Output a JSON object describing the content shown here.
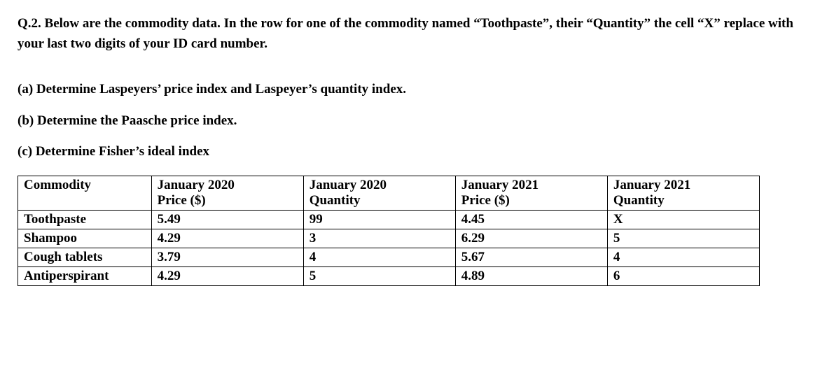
{
  "question": {
    "intro": "Q.2. Below are the commodity data. In the row for one of the commodity named “Toothpaste”, their “Quantity” the cell “X” replace with your last two digits of your ID card number.",
    "part_a": "(a) Determine Laspeyers’ price index and Laspeyer’s quantity index.",
    "part_b": "(b) Determine the Paasche price index.",
    "part_c": "(c) Determine Fisher’s ideal index"
  },
  "table": {
    "headers": {
      "commodity": "Commodity",
      "jan2020_price": "January 2020 Price ($)",
      "jan2020_qty": "January 2020 Quantity",
      "jan2021_price": "January 2021 Price ($)",
      "jan2021_qty": "January 2021 Quantity"
    },
    "header_lines": {
      "jan2020": "January 2020",
      "jan2021": "January 2021",
      "price": "Price ($)",
      "quantity": "Quantity"
    },
    "rows": [
      {
        "commodity": "Toothpaste",
        "p2020": "5.49",
        "q2020": "99",
        "p2021": "4.45",
        "q2021": "X"
      },
      {
        "commodity": "Shampoo",
        "p2020": "4.29",
        "q2020": "3",
        "p2021": "6.29",
        "q2021": "5"
      },
      {
        "commodity": "Cough tablets",
        "p2020": "3.79",
        "q2020": "4",
        "p2021": "5.67",
        "q2021": "4"
      },
      {
        "commodity": "Antiperspirant",
        "p2020": "4.29",
        "q2020": "5",
        "p2021": "4.89",
        "q2021": "6"
      }
    ]
  },
  "styling": {
    "font_family": "Times New Roman",
    "font_size_pt": 19,
    "font_weight": "bold",
    "background_color": "#ffffff",
    "text_color": "#000000",
    "border_color": "#000000",
    "border_width": 1.5
  }
}
